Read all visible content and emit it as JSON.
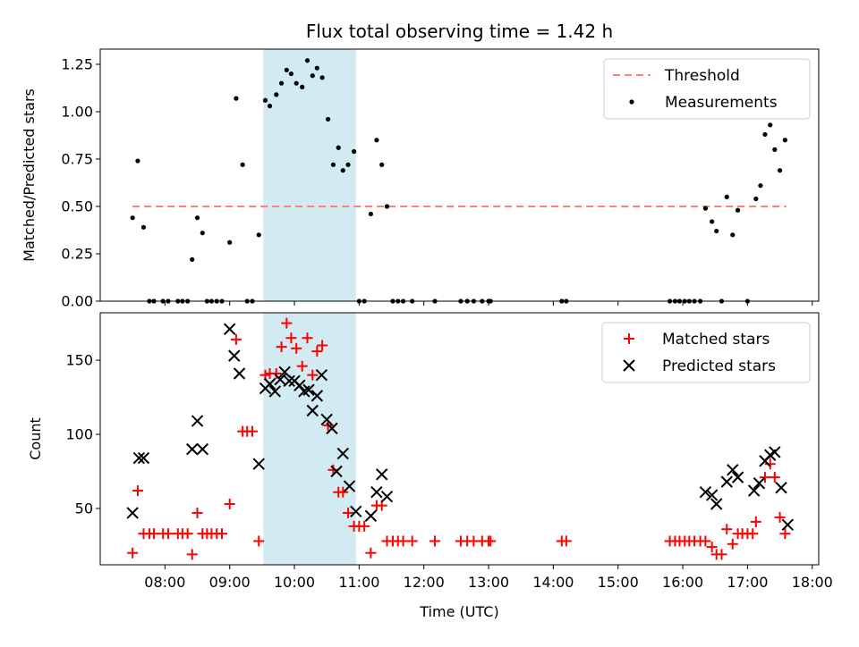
{
  "chart_data": [
    {
      "type": "scatter",
      "title": "Flux total observing time = 1.42 h",
      "xlabel": "",
      "ylabel": "Matched/Predicted stars",
      "xlim": [
        7.0,
        18.1
      ],
      "ylim": [
        0,
        1.33
      ],
      "yticks": [
        0.0,
        0.25,
        0.5,
        0.75,
        1.0,
        1.25
      ],
      "ytick_labels": [
        "0.00",
        "0.25",
        "0.50",
        "0.75",
        "1.00",
        "1.25"
      ],
      "highlight_span": [
        9.52,
        10.95
      ],
      "colors": {
        "measurement": "#000000",
        "threshold": "#ff7f7f",
        "span": "#add8e6"
      },
      "threshold": {
        "name": "Threshold",
        "value": 0.5,
        "x_range": [
          7.5,
          17.6
        ]
      },
      "legend": [
        "Threshold",
        "Measurements"
      ],
      "series": [
        {
          "name": "Measurements",
          "points": [
            [
              7.5,
              0.44
            ],
            [
              7.58,
              0.74
            ],
            [
              7.67,
              0.39
            ],
            [
              7.76,
              0
            ],
            [
              7.83,
              0
            ],
            [
              7.97,
              0
            ],
            [
              8.05,
              0
            ],
            [
              8.2,
              0
            ],
            [
              8.27,
              0
            ],
            [
              8.35,
              0
            ],
            [
              8.42,
              0.22
            ],
            [
              8.5,
              0.44
            ],
            [
              8.58,
              0.36
            ],
            [
              8.65,
              0
            ],
            [
              8.72,
              0
            ],
            [
              8.8,
              0
            ],
            [
              8.88,
              0
            ],
            [
              9.0,
              0.31
            ],
            [
              9.1,
              1.07
            ],
            [
              9.2,
              0.72
            ],
            [
              9.27,
              0
            ],
            [
              9.35,
              0
            ],
            [
              9.45,
              0.35
            ],
            [
              9.55,
              1.06
            ],
            [
              9.62,
              1.03
            ],
            [
              9.72,
              1.09
            ],
            [
              9.8,
              1.15
            ],
            [
              9.88,
              1.22
            ],
            [
              9.95,
              1.2
            ],
            [
              10.03,
              1.15
            ],
            [
              10.12,
              1.13
            ],
            [
              10.2,
              1.27
            ],
            [
              10.28,
              1.19
            ],
            [
              10.35,
              1.23
            ],
            [
              10.43,
              1.18
            ],
            [
              10.52,
              0.96
            ],
            [
              10.6,
              0.72
            ],
            [
              10.68,
              0.81
            ],
            [
              10.75,
              0.69
            ],
            [
              10.83,
              0.72
            ],
            [
              10.92,
              0.79
            ],
            [
              11.0,
              0
            ],
            [
              11.08,
              0
            ],
            [
              11.18,
              0.46
            ],
            [
              11.27,
              0.85
            ],
            [
              11.35,
              0.72
            ],
            [
              11.43,
              0.5
            ],
            [
              11.52,
              0
            ],
            [
              11.6,
              0
            ],
            [
              11.68,
              0
            ],
            [
              11.82,
              0
            ],
            [
              12.17,
              0
            ],
            [
              12.57,
              0
            ],
            [
              12.67,
              0
            ],
            [
              12.77,
              0
            ],
            [
              12.9,
              0
            ],
            [
              13.0,
              0
            ],
            [
              13.03,
              0
            ],
            [
              14.13,
              0
            ],
            [
              14.2,
              0
            ],
            [
              15.8,
              0
            ],
            [
              15.88,
              0
            ],
            [
              15.95,
              0
            ],
            [
              16.03,
              0
            ],
            [
              16.1,
              0
            ],
            [
              16.18,
              0
            ],
            [
              16.27,
              0
            ],
            [
              16.35,
              0.49
            ],
            [
              16.45,
              0.42
            ],
            [
              16.52,
              0.37
            ],
            [
              16.6,
              0
            ],
            [
              16.68,
              0.55
            ],
            [
              16.77,
              0.35
            ],
            [
              16.85,
              0.48
            ],
            [
              17.0,
              0
            ],
            [
              17.13,
              0.54
            ],
            [
              17.2,
              0.61
            ],
            [
              17.27,
              0.88
            ],
            [
              17.35,
              0.93
            ],
            [
              17.42,
              0.8
            ],
            [
              17.5,
              0.69
            ],
            [
              17.58,
              0.85
            ]
          ]
        }
      ]
    },
    {
      "type": "scatter",
      "title": "",
      "xlabel": "Time (UTC)",
      "ylabel": "Count",
      "xlim": [
        7.0,
        18.1
      ],
      "ylim": [
        12,
        182
      ],
      "yticks": [
        50,
        100,
        150
      ],
      "ytick_labels": [
        "50",
        "100",
        "150"
      ],
      "xticks": [
        8,
        9,
        10,
        11,
        12,
        13,
        14,
        15,
        16,
        17,
        18
      ],
      "xtick_labels": [
        "08:00",
        "09:00",
        "10:00",
        "11:00",
        "12:00",
        "13:00",
        "14:00",
        "15:00",
        "16:00",
        "17:00",
        "18:00"
      ],
      "highlight_span": [
        9.52,
        10.95
      ],
      "colors": {
        "matched": "#ff0000",
        "predicted": "#000000",
        "span": "#add8e6"
      },
      "legend": [
        "Matched stars",
        "Predicted stars"
      ],
      "series": [
        {
          "name": "Matched stars",
          "marker": "+",
          "points": [
            [
              7.5,
              20
            ],
            [
              7.58,
              62
            ],
            [
              7.67,
              33
            ],
            [
              7.76,
              33
            ],
            [
              7.83,
              33
            ],
            [
              7.97,
              33
            ],
            [
              8.05,
              33
            ],
            [
              8.2,
              33
            ],
            [
              8.27,
              33
            ],
            [
              8.35,
              33
            ],
            [
              8.42,
              19
            ],
            [
              8.5,
              47
            ],
            [
              8.58,
              33
            ],
            [
              8.65,
              33
            ],
            [
              8.72,
              33
            ],
            [
              8.8,
              33
            ],
            [
              8.88,
              33
            ],
            [
              9.0,
              53
            ],
            [
              9.1,
              164
            ],
            [
              9.2,
              102
            ],
            [
              9.27,
              102
            ],
            [
              9.35,
              102
            ],
            [
              9.45,
              28
            ],
            [
              9.55,
              140
            ],
            [
              9.62,
              141
            ],
            [
              9.72,
              141
            ],
            [
              9.8,
              159
            ],
            [
              9.88,
              175
            ],
            [
              9.95,
              165
            ],
            [
              10.03,
              158
            ],
            [
              10.12,
              146
            ],
            [
              10.2,
              165
            ],
            [
              10.28,
              140
            ],
            [
              10.35,
              156
            ],
            [
              10.43,
              160
            ],
            [
              10.52,
              106
            ],
            [
              10.6,
              76
            ],
            [
              10.68,
              61
            ],
            [
              10.75,
              61
            ],
            [
              10.83,
              47
            ],
            [
              10.92,
              38
            ],
            [
              11.0,
              38
            ],
            [
              11.08,
              38
            ],
            [
              11.18,
              20
            ],
            [
              11.27,
              52
            ],
            [
              11.35,
              52
            ],
            [
              11.43,
              28
            ],
            [
              11.52,
              28
            ],
            [
              11.6,
              28
            ],
            [
              11.68,
              28
            ],
            [
              11.82,
              28
            ],
            [
              12.17,
              28
            ],
            [
              12.57,
              28
            ],
            [
              12.67,
              28
            ],
            [
              12.77,
              28
            ],
            [
              12.9,
              28
            ],
            [
              13.0,
              28
            ],
            [
              13.03,
              28
            ],
            [
              14.13,
              28
            ],
            [
              14.2,
              28
            ],
            [
              15.8,
              28
            ],
            [
              15.88,
              28
            ],
            [
              15.95,
              28
            ],
            [
              16.03,
              28
            ],
            [
              16.1,
              28
            ],
            [
              16.18,
              28
            ],
            [
              16.27,
              28
            ],
            [
              16.35,
              28
            ],
            [
              16.45,
              24
            ],
            [
              16.52,
              19
            ],
            [
              16.6,
              19
            ],
            [
              16.68,
              36
            ],
            [
              16.77,
              26
            ],
            [
              16.85,
              33
            ],
            [
              16.92,
              33
            ],
            [
              17.0,
              33
            ],
            [
              17.08,
              33
            ],
            [
              17.13,
              41
            ],
            [
              17.27,
              71
            ],
            [
              17.35,
              80
            ],
            [
              17.42,
              71
            ],
            [
              17.5,
              44
            ],
            [
              17.58,
              33
            ]
          ]
        },
        {
          "name": "Predicted stars",
          "marker": "x",
          "points": [
            [
              7.5,
              47
            ],
            [
              7.6,
              84
            ],
            [
              7.67,
              84
            ],
            [
              8.42,
              90
            ],
            [
              8.5,
              109
            ],
            [
              8.58,
              90
            ],
            [
              9.0,
              171
            ],
            [
              9.07,
              153
            ],
            [
              9.15,
              141
            ],
            [
              9.45,
              80
            ],
            [
              9.55,
              131
            ],
            [
              9.62,
              134
            ],
            [
              9.7,
              129
            ],
            [
              9.78,
              137
            ],
            [
              9.85,
              142
            ],
            [
              9.92,
              136
            ],
            [
              10.0,
              136
            ],
            [
              10.08,
              133
            ],
            [
              10.15,
              129
            ],
            [
              10.22,
              130
            ],
            [
              10.28,
              116
            ],
            [
              10.35,
              126
            ],
            [
              10.42,
              140
            ],
            [
              10.5,
              110
            ],
            [
              10.58,
              104
            ],
            [
              10.65,
              75
            ],
            [
              10.75,
              87
            ],
            [
              10.85,
              65
            ],
            [
              10.95,
              48
            ],
            [
              11.18,
              45
            ],
            [
              11.27,
              61
            ],
            [
              11.35,
              73
            ],
            [
              11.43,
              58
            ],
            [
              16.35,
              61
            ],
            [
              16.45,
              59
            ],
            [
              16.52,
              53
            ],
            [
              16.68,
              68
            ],
            [
              16.77,
              76
            ],
            [
              16.85,
              71
            ],
            [
              17.1,
              62
            ],
            [
              17.18,
              67
            ],
            [
              17.27,
              82
            ],
            [
              17.35,
              86
            ],
            [
              17.42,
              88
            ],
            [
              17.52,
              64
            ],
            [
              17.62,
              39
            ]
          ]
        }
      ]
    }
  ]
}
